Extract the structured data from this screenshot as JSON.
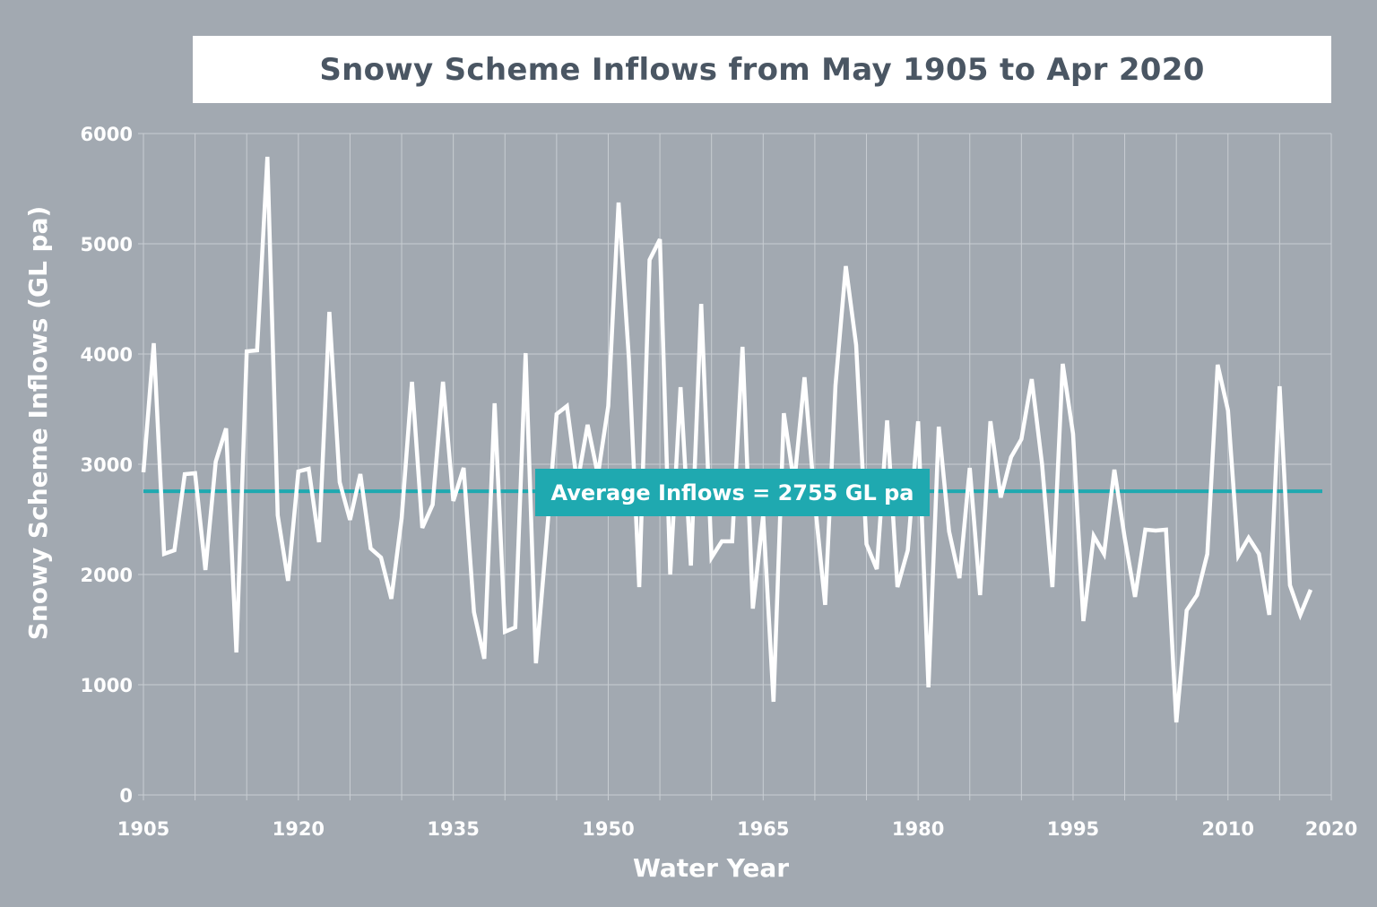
{
  "chart_data": {
    "type": "line",
    "title": "Snowy Scheme Inflows from May 1905 to Apr 2020",
    "xlabel": "Water Year",
    "ylabel": "Snowy Scheme Inflows (GL pa)",
    "xlim": [
      1905,
      2020
    ],
    "ylim": [
      0,
      6000
    ],
    "x_ticks": [
      1905,
      1920,
      1935,
      1950,
      1965,
      1980,
      1995,
      2010,
      2020
    ],
    "x_grid_step": 5,
    "y_ticks": [
      0,
      1000,
      2000,
      3000,
      4000,
      5000,
      6000
    ],
    "grid": true,
    "start_year": 1905,
    "values": [
      2927,
      4098,
      2187,
      2220,
      2910,
      2919,
      2041,
      3024,
      3325,
      1293,
      4024,
      4033,
      5789,
      2537,
      1943,
      2935,
      2959,
      2293,
      4382,
      2837,
      2496,
      2911,
      2236,
      2154,
      1780,
      2512,
      3748,
      2423,
      2634,
      3748,
      2667,
      2967,
      1659,
      1236,
      3553,
      1480,
      1520,
      4008,
      1195,
      2300,
      3455,
      3528,
      2821,
      3358,
      2902,
      3528,
      5374,
      3959,
      1886,
      4854,
      5041,
      2000,
      3699,
      2081,
      4455,
      2154,
      2301,
      2301,
      4065,
      1691,
      2537,
      846,
      3463,
      2821,
      3789,
      2659,
      1724,
      3715,
      4797,
      4081,
      2276,
      2049,
      3398,
      1886,
      2220,
      3390,
      976,
      3341,
      2390,
      1967,
      2967,
      1813,
      3390,
      2699,
      3065,
      3228,
      3772,
      3000,
      1886,
      3911,
      3276,
      1577,
      2350,
      2187,
      2951,
      2333,
      1797,
      2407,
      2398,
      2407,
      659,
      1675,
      1813,
      2187,
      3902,
      3488,
      2171,
      2333,
      2187,
      1634,
      3707,
      1902,
      1634,
      1862
    ],
    "average": {
      "value": 2755,
      "label": "Average Inflows = 2755 GL pa"
    },
    "colors": {
      "background": "#a2a9b1",
      "line": "#ffffff",
      "average": "#1fa9b0",
      "title_text": "#4a5663",
      "grid": "#c8cdd2"
    }
  }
}
